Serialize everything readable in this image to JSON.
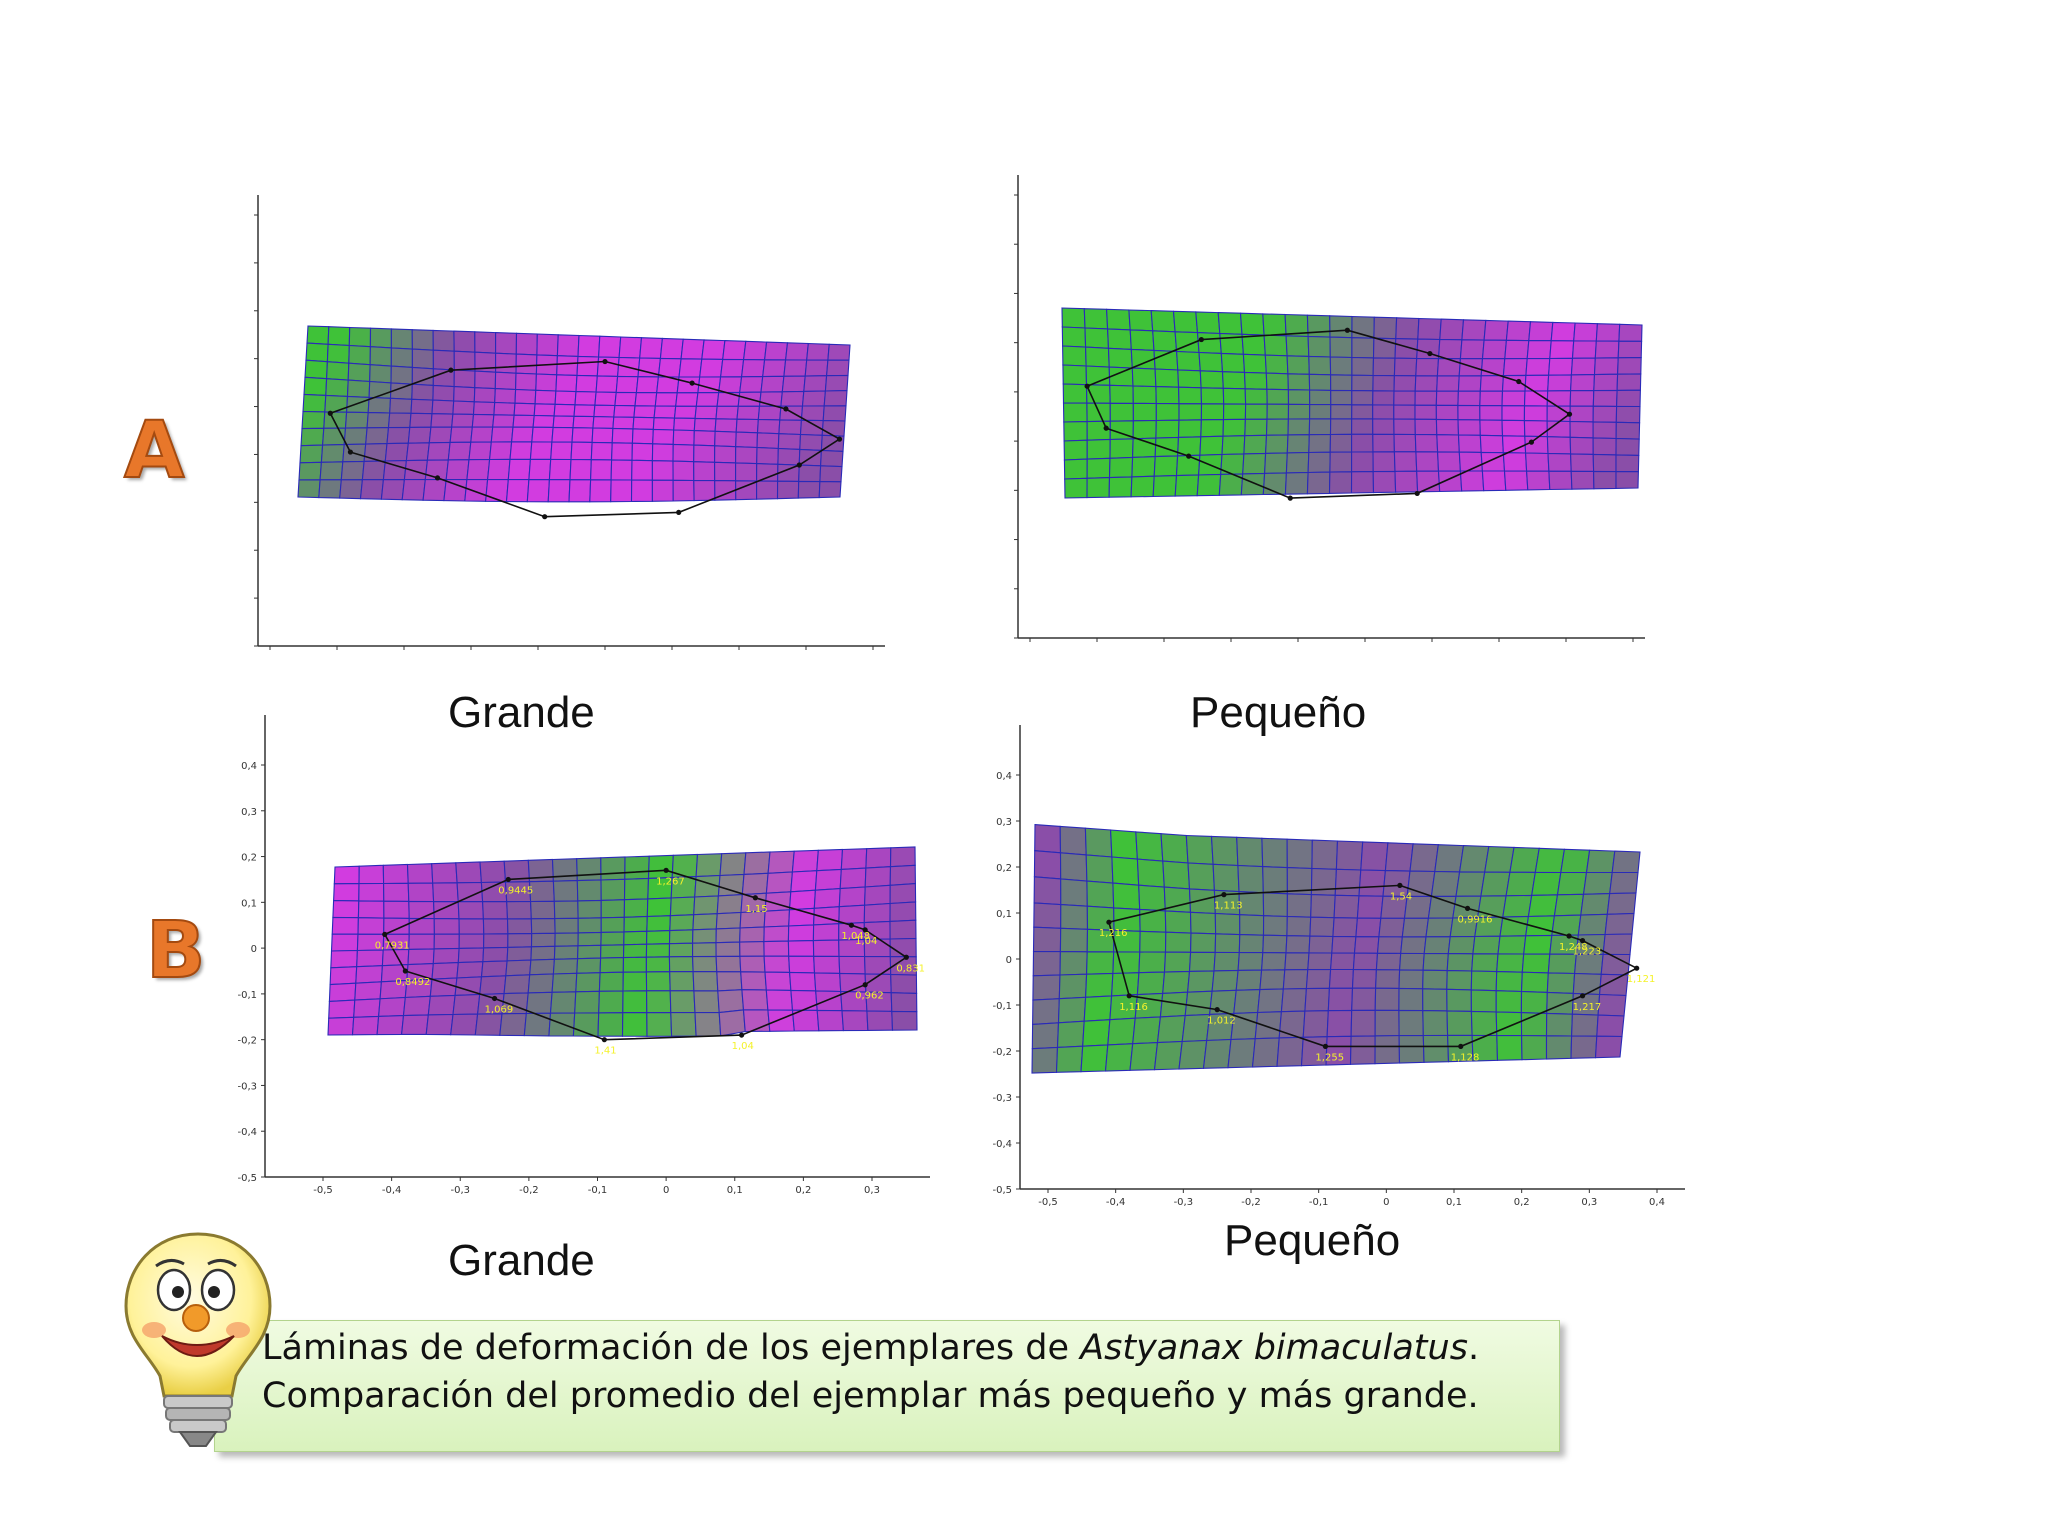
{
  "panel_labels": {
    "a": "A",
    "b": "B"
  },
  "captions": {
    "a_left": "Grande",
    "a_right": "Pequeño",
    "b_left": "Grande",
    "b_right": "Pequeño"
  },
  "note": {
    "line1_prefix": "Láminas de deformación de los ejemplares de ",
    "line1_species": "Astyanax bimaculatus",
    "line1_suffix": ".",
    "line2": "Comparación del promedio del ejemplar más pequeño y más grande."
  },
  "colors": {
    "grid_lines": "#2a2ab8",
    "magenta": "#d23ce0",
    "purple": "#8a4ea8",
    "green": "#3fc238",
    "landmark_label": "#f4f22a",
    "letter": "#e8772a",
    "note_bg": "#e2f6cc"
  },
  "charts": {
    "b_left": {
      "y_ticks": [
        "0,4",
        "0,3",
        "0,2",
        "0,1",
        "0",
        "-0,1",
        "-0,2",
        "-0,3",
        "-0,4",
        "-0,5"
      ],
      "x_ticks": [
        "-0,5",
        "-0,4",
        "-0,3",
        "-0,2",
        "-0,1",
        "0",
        "0,1",
        "0,2",
        "0,3"
      ],
      "landmarks": [
        {
          "label": "0,7931",
          "x": -0.41,
          "y": 0.03
        },
        {
          "label": "0,9445",
          "x": -0.23,
          "y": 0.15
        },
        {
          "label": "1,267",
          "x": 0.0,
          "y": 0.17
        },
        {
          "label": "1,15",
          "x": 0.13,
          "y": 0.11
        },
        {
          "label": "1,048",
          "x": 0.27,
          "y": 0.05
        },
        {
          "label": "1,04",
          "x": 0.29,
          "y": 0.04
        },
        {
          "label": "0,831",
          "x": 0.35,
          "y": -0.02
        },
        {
          "label": "0,962",
          "x": 0.29,
          "y": -0.08
        },
        {
          "label": "1,04",
          "x": 0.11,
          "y": -0.19
        },
        {
          "label": "1,41",
          "x": -0.09,
          "y": -0.2
        },
        {
          "label": "1,069",
          "x": -0.25,
          "y": -0.11
        },
        {
          "label": "0,8492",
          "x": -0.38,
          "y": -0.05
        }
      ]
    },
    "b_right": {
      "y_ticks": [
        "0,4",
        "0,3",
        "0,2",
        "0,1",
        "0",
        "-0,1",
        "-0,2",
        "-0,3",
        "-0,4",
        "-0,5"
      ],
      "x_ticks": [
        "-0,5",
        "-0,4",
        "-0,3",
        "-0,2",
        "-0,1",
        "0",
        "0,1",
        "0,2",
        "0,3",
        "0,4"
      ],
      "landmarks": [
        {
          "label": "1,216",
          "x": -0.41,
          "y": 0.08
        },
        {
          "label": "1,113",
          "x": -0.24,
          "y": 0.14
        },
        {
          "label": "1,54",
          "x": 0.02,
          "y": 0.16
        },
        {
          "label": "0,9916",
          "x": 0.12,
          "y": 0.11
        },
        {
          "label": "1,248",
          "x": 0.27,
          "y": 0.05
        },
        {
          "label": "1,223",
          "x": 0.29,
          "y": 0.04
        },
        {
          "label": "1,121",
          "x": 0.37,
          "y": -0.02
        },
        {
          "label": "1,217",
          "x": 0.29,
          "y": -0.08
        },
        {
          "label": "1,128",
          "x": 0.11,
          "y": -0.19
        },
        {
          "label": "1,255",
          "x": -0.09,
          "y": -0.19
        },
        {
          "label": "1,012",
          "x": -0.25,
          "y": -0.11
        },
        {
          "label": "1,116",
          "x": -0.38,
          "y": -0.08
        }
      ]
    }
  }
}
